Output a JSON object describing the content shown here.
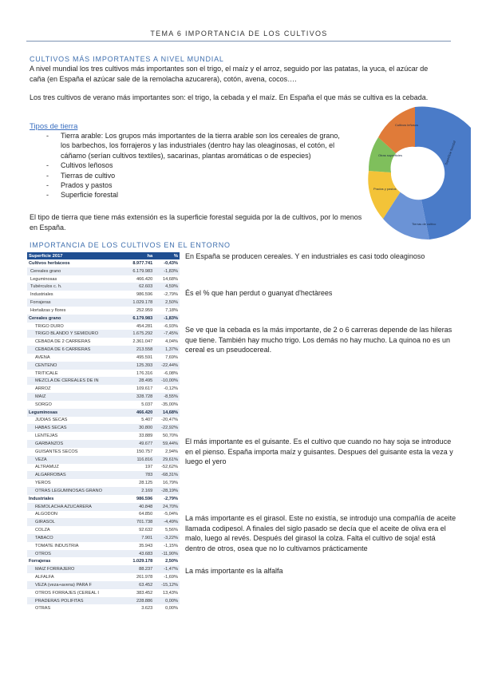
{
  "header": "TEMA 6 IMPORTANCIA DE LOS CULTIVOS",
  "section1": {
    "title": "CULTIVOS MÁS IMPORTANTES A NIVEL MUNDIAL",
    "p1": "A nivel mundial los tres cultivos más importantes son el trigo, el maíz y el arroz, seguido por las patatas, la yuca, el azúcar de caña (en España el azúcar sale de la remolacha azucarera), cotón, avena, cocos….",
    "p2": "Los tres cultivos de verano más importantes son: el trigo, la cebada y el maíz. En España el que más se cultiva es la cebada."
  },
  "tipos": {
    "link": "Tipos de tierra",
    "items": [
      "Tierra arable: Los grupos más importantes de la tierra arable son los cereales de grano, los barbechos, los forrajeros y las industriales (dentro hay las oleaginosas, el cotón, el cáñamo (serían cultivos textiles), sacarinas, plantas aromáticas o de especies)",
      "Cultivos leñosos",
      "Tierras de cultivo",
      "Prados y pastos",
      "Superficie forestal"
    ],
    "after": "El tipo de tierra que tiene más extensión es la superficie forestal seguida por la de cultivos, por lo menos en España."
  },
  "donut": {
    "labels": [
      "Superficie forestal",
      "Prados y pastos",
      "Otras superficies",
      "Cultivos leñosos",
      "Tierras de cultivo"
    ],
    "colors": [
      "#4a7bc8",
      "#f3c338",
      "#7fbf5c",
      "#e07b39",
      "#9aa6b8"
    ]
  },
  "section2": {
    "title": "IMPORTANCIA DE LOS CULTIVOS EN EL ENTORNO"
  },
  "table": {
    "headers": [
      "Superficie 2017",
      "ha",
      "%"
    ],
    "rows": [
      {
        "c": "Cultivos herbáceos",
        "ha": "8.977.741",
        "p": "-0,43%",
        "b": true
      },
      {
        "c": "Cereales grano",
        "ha": "6.179.983",
        "p": "-1,83%"
      },
      {
        "c": "Leguminosas",
        "ha": "466.420",
        "p": "14,68%"
      },
      {
        "c": "Tubérculos c. h.",
        "ha": "62.603",
        "p": "4,59%"
      },
      {
        "c": "Industriales",
        "ha": "986.596",
        "p": "-2,79%"
      },
      {
        "c": "Forrajeras",
        "ha": "1.029.178",
        "p": "2,50%"
      },
      {
        "c": "Hortalizas y flores",
        "ha": "252.959",
        "p": "7,18%"
      },
      {
        "c": "Cereales grano",
        "ha": "6.179.983",
        "p": "-1,83%",
        "b": true
      },
      {
        "c": "TRIGO DURO",
        "ha": "454.281",
        "p": "-6,93%"
      },
      {
        "c": "TRIGO BLANDO Y SEMIDURO",
        "ha": "1.675.292",
        "p": "-7,45%"
      },
      {
        "c": "CEBADA DE 2 CARRERAS",
        "ha": "2.361.047",
        "p": "4,04%"
      },
      {
        "c": "CEBADA DE 6 CARRERAS",
        "ha": "213.558",
        "p": "1,37%"
      },
      {
        "c": "AVENA",
        "ha": "495.591",
        "p": "7,69%"
      },
      {
        "c": "CENTENO",
        "ha": "125.393",
        "p": "-22,44%"
      },
      {
        "c": "TRITICALE",
        "ha": "176.316",
        "p": "-6,08%"
      },
      {
        "c": "MEZCLA DE CEREALES DE IN",
        "ha": "28.495",
        "p": "-10,00%"
      },
      {
        "c": "ARROZ",
        "ha": "109.617",
        "p": "-0,12%"
      },
      {
        "c": "MAIZ",
        "ha": "328.728",
        "p": "-8,55%"
      },
      {
        "c": "SORGO",
        "ha": "5.037",
        "p": "-35,00%"
      },
      {
        "c": "Leguminosas",
        "ha": "466.420",
        "p": "14,68%",
        "b": true
      },
      {
        "c": "JUDIAS SECAS",
        "ha": "5.407",
        "p": "-20,47%"
      },
      {
        "c": "HABAS SECAS",
        "ha": "30.800",
        "p": "-22,92%"
      },
      {
        "c": "LENTEJAS",
        "ha": "33.889",
        "p": "50,70%"
      },
      {
        "c": "GARBANZOS",
        "ha": "49.677",
        "p": "59,44%"
      },
      {
        "c": "GUISANTES SECOS",
        "ha": "150.757",
        "p": "2,94%"
      },
      {
        "c": "VEZA",
        "ha": "116.816",
        "p": "29,61%"
      },
      {
        "c": "ALTRAMUZ",
        "ha": "197",
        "p": "-52,62%"
      },
      {
        "c": "ALGARROBAS",
        "ha": "783",
        "p": "-68,31%"
      },
      {
        "c": "YEROS",
        "ha": "28.125",
        "p": "16,79%"
      },
      {
        "c": "OTRAS LEGUMINOSAS GRANO",
        "ha": "2.169",
        "p": "-28,19%"
      },
      {
        "c": "Industriales",
        "ha": "986.596",
        "p": "-2,79%",
        "b": true
      },
      {
        "c": "REMOLACHA AZUCARERA",
        "ha": "40.848",
        "p": "24,70%"
      },
      {
        "c": "ALGODON",
        "ha": "64.850",
        "p": "-5,04%"
      },
      {
        "c": "GIRASOL",
        "ha": "701.738",
        "p": "-4,49%"
      },
      {
        "c": "COLZA",
        "ha": "92.632",
        "p": "5,56%"
      },
      {
        "c": "TABACO",
        "ha": "7.901",
        "p": "-3,22%"
      },
      {
        "c": "TOMATE INDUSTRIA",
        "ha": "35.943",
        "p": "-1,15%"
      },
      {
        "c": "OTROS",
        "ha": "43.683",
        "p": "-11,90%"
      },
      {
        "c": "Forrajeras",
        "ha": "1.029.178",
        "p": "2,50%",
        "b": true
      },
      {
        "c": "MAIZ FORRAJERO",
        "ha": "88.237",
        "p": "-1,47%"
      },
      {
        "c": "ALFALFA",
        "ha": "261.978",
        "p": "-1,69%"
      },
      {
        "c": "VEZA (veza+avena) PARA F",
        "ha": "63.452",
        "p": "-15,12%"
      },
      {
        "c": "OTROS FORRAJES (CEREAL I",
        "ha": "383.452",
        "p": "13,43%"
      },
      {
        "c": "PRADERAS POLIFITAS",
        "ha": "228.886",
        "p": "0,00%"
      },
      {
        "c": "OTRAS",
        "ha": "3.623",
        "p": "0,00%"
      }
    ]
  },
  "notes": [
    "En España se producen cereales. Y en industriales es casi todo oleaginoso",
    "És el % que han perdut o guanyat d'hectàrees",
    "Se ve que la cebada es la más importante, de 2 o 6 carreras depende de las hileras que tiene. También hay mucho trigo. Los demás no hay mucho. La quinoa no es un cereal es un pseudocereal.",
    "El más importante es el guisante. Es el cultivo que cuando no hay soja se introduce en el pienso. España importa maíz y guisantes. Despues del guisante esta la veza y luego el yero",
    "La más importante es el girasol. Este no existía, se introdujo una compañía de aceite llamada codipesol. A finales del siglo pasado se decía que el aceite de oliva era el malo, luego al revés. Después del girasol la colza. Falta el cultivo de soja! está dentro de otros, osea que no lo cultivamos prácticamente",
    "La más importante es la alfalfa"
  ]
}
